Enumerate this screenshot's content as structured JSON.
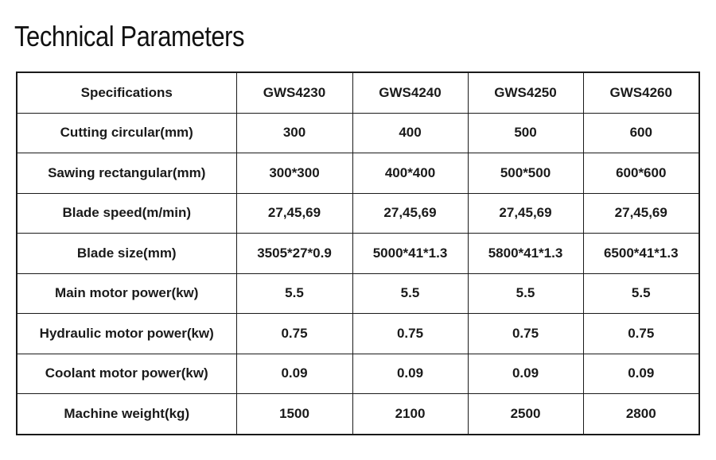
{
  "title": "Technical Parameters",
  "table": {
    "header": {
      "label": "Specifications",
      "models": [
        "GWS4230",
        "GWS4240",
        "GWS4250",
        "GWS4260"
      ]
    },
    "rows": [
      {
        "label": "Cutting circular(mm)",
        "values": [
          "300",
          "400",
          "500",
          "600"
        ]
      },
      {
        "label": "Sawing rectangular(mm)",
        "values": [
          "300*300",
          "400*400",
          "500*500",
          "600*600"
        ]
      },
      {
        "label": "Blade speed(m/min)",
        "values": [
          "27,45,69",
          "27,45,69",
          "27,45,69",
          "27,45,69"
        ]
      },
      {
        "label": "Blade size(mm)",
        "values": [
          "3505*27*0.9",
          "5000*41*1.3",
          "5800*41*1.3",
          "6500*41*1.3"
        ]
      },
      {
        "label": "Main motor power(kw)",
        "values": [
          "5.5",
          "5.5",
          "5.5",
          "5.5"
        ]
      },
      {
        "label": "Hydraulic motor power(kw)",
        "values": [
          "0.75",
          "0.75",
          "0.75",
          "0.75"
        ]
      },
      {
        "label": "Coolant motor power(kw)",
        "values": [
          "0.09",
          "0.09",
          "0.09",
          "0.09"
        ]
      },
      {
        "label": "Machine weight(kg)",
        "values": [
          "1500",
          "2100",
          "2500",
          "2800"
        ]
      }
    ]
  }
}
